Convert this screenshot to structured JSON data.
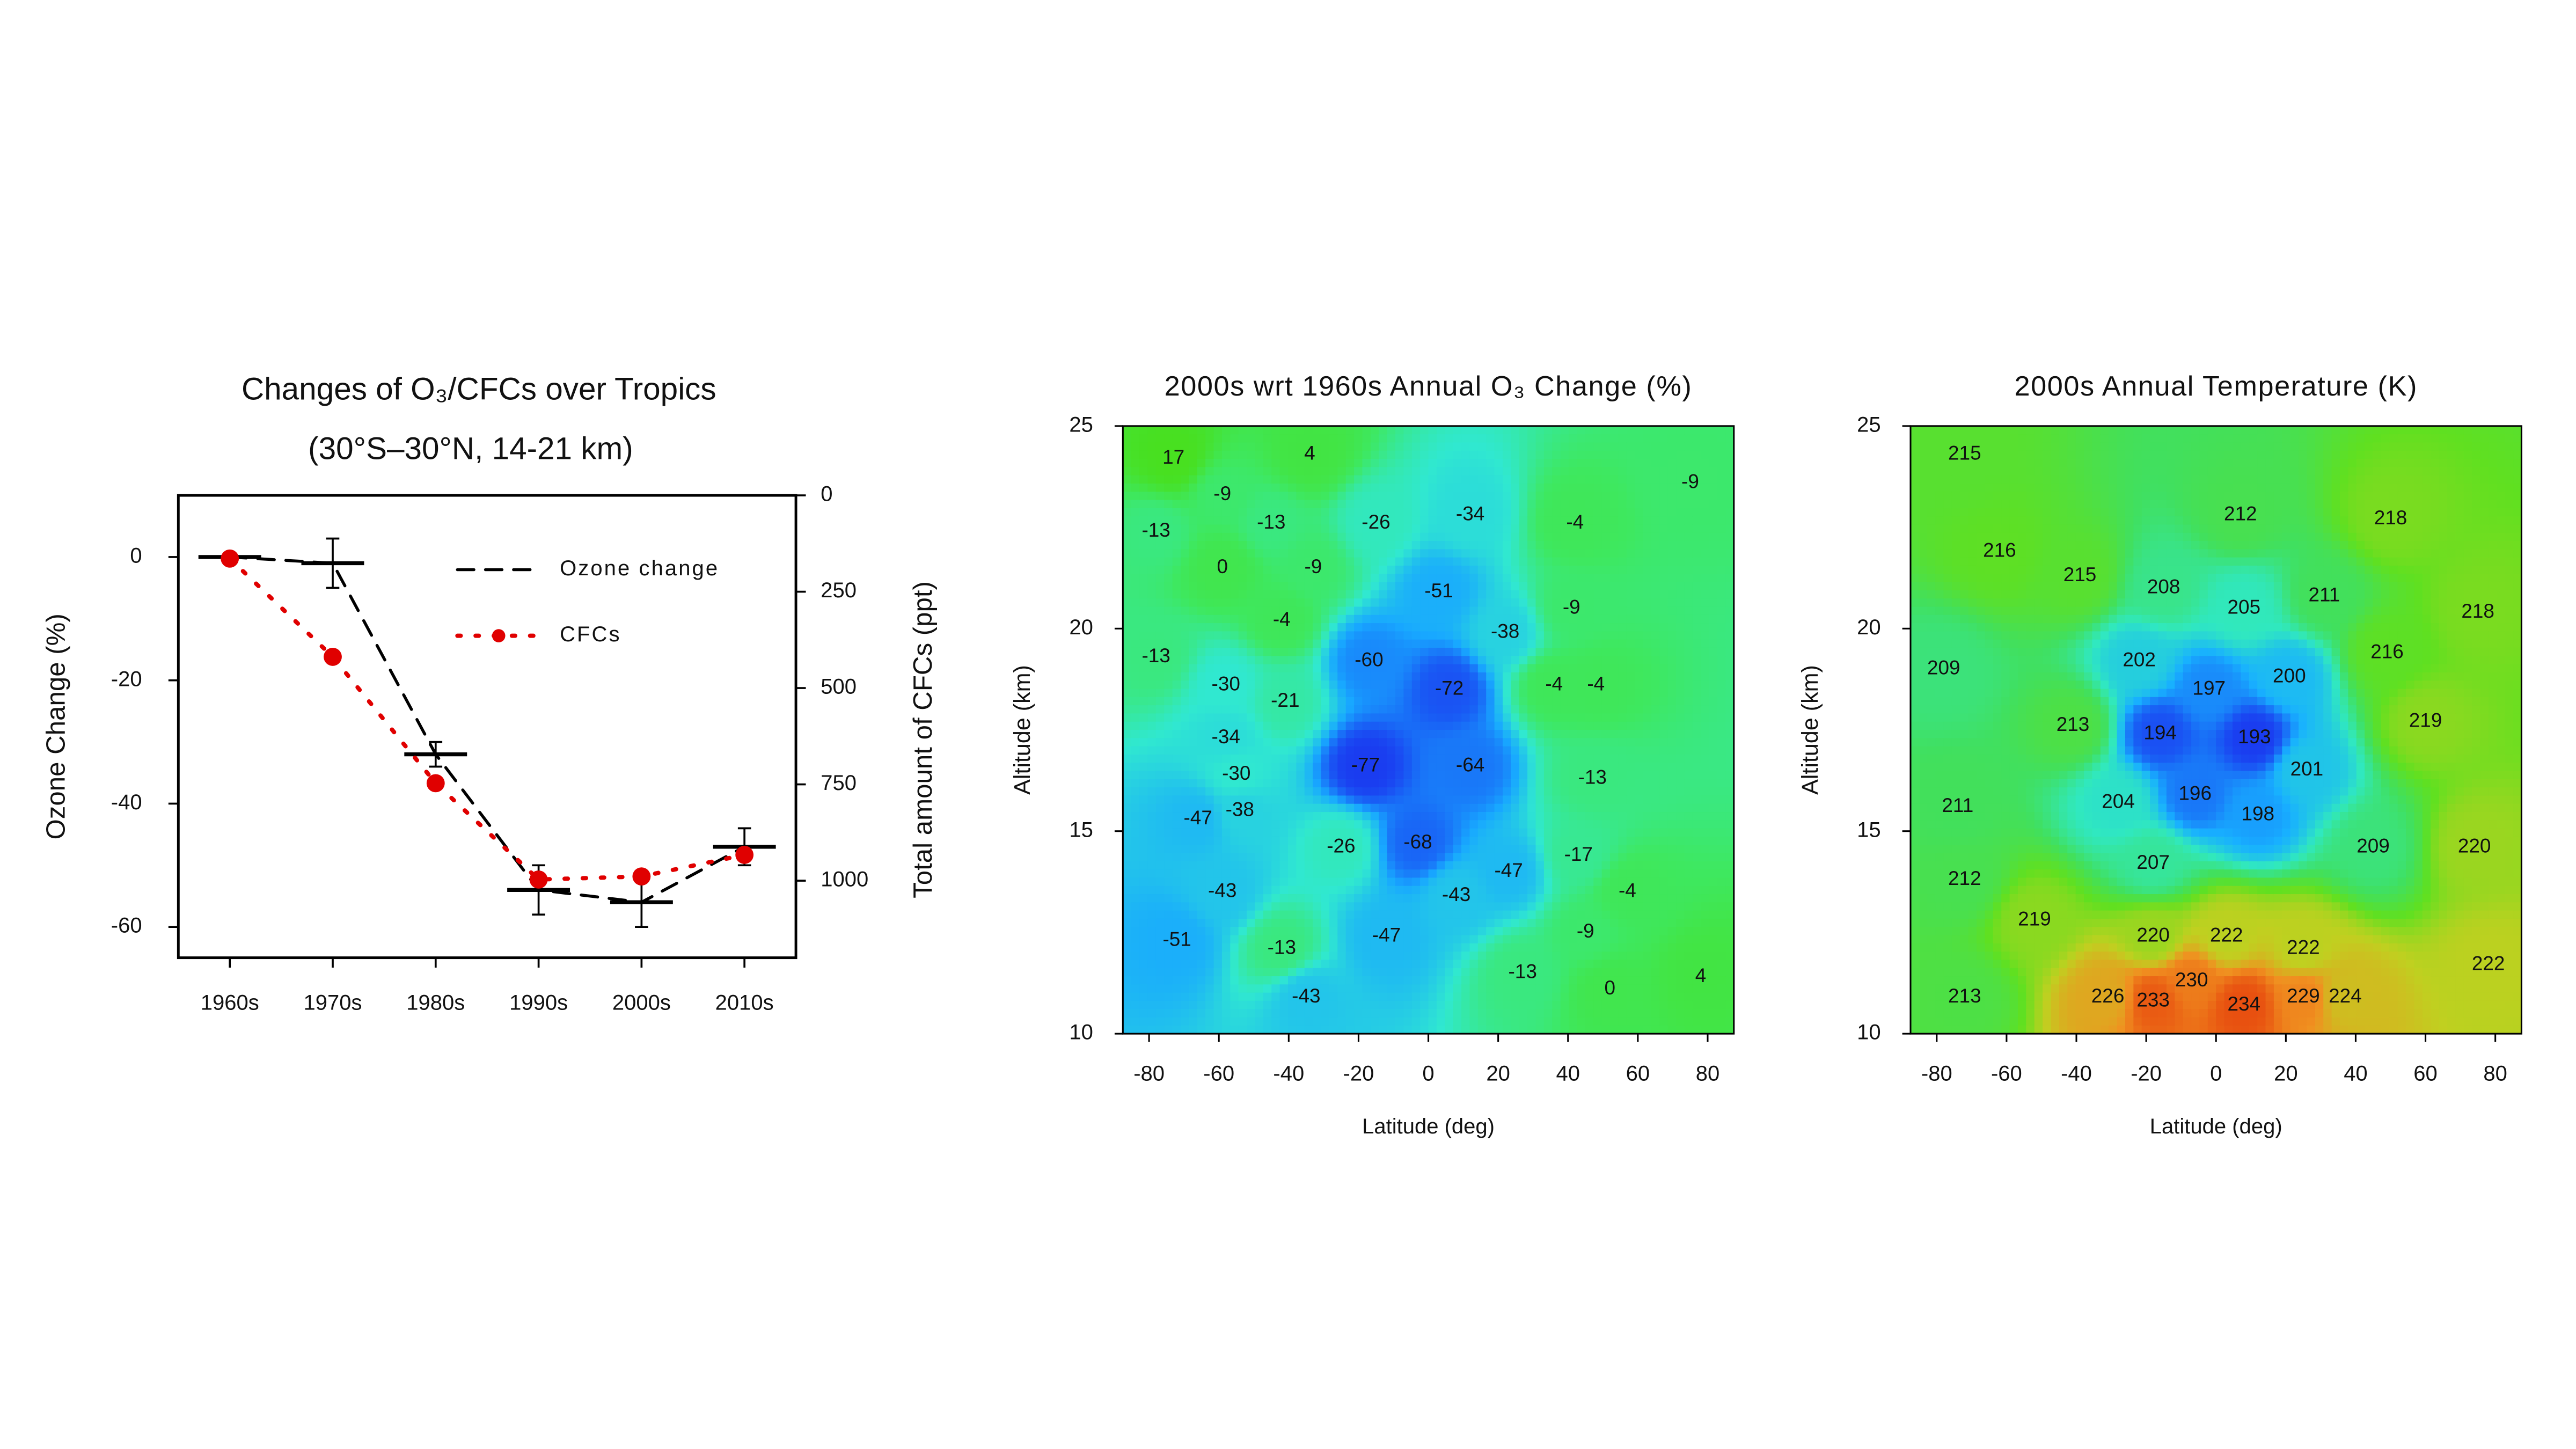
{
  "chart_data": [
    {
      "type": "line",
      "title": "Changes of O₃/CFCs over Tropics",
      "subtitle": "(30°S–30°N, 14-21 km)",
      "y_label": "Ozone Change (%)",
      "y2_label": "Total amount of CFCs (ppt)",
      "categories": [
        "1960s",
        "1970s",
        "1980s",
        "1990s",
        "2000s",
        "2010s"
      ],
      "ylim": [
        -65,
        10
      ],
      "yticks": [
        -60,
        -40,
        -20,
        0
      ],
      "y2lim": [
        1200,
        0
      ],
      "y2ticks": [
        0,
        250,
        500,
        750,
        1000
      ],
      "legend": "upper right",
      "series": [
        {
          "name": "Ozone change",
          "color": "#000000",
          "values": [
            0,
            -1,
            -32,
            -54,
            -56,
            -47
          ],
          "errors": [
            0,
            4,
            2,
            4,
            4,
            3
          ]
        },
        {
          "name": "CFCs",
          "color": "#e00000",
          "axis": "y2",
          "values": [
            164,
            419,
            747,
            997,
            989,
            933
          ]
        }
      ]
    },
    {
      "type": "contour",
      "title": "2000s wrt 1960s Annual O₃ Change (%)",
      "x_label": "Latitude (deg)",
      "y_label": "Altitude (km)",
      "xlim": [
        -87.5,
        87.5
      ],
      "ylim": [
        10,
        25
      ],
      "xticks": [
        -80,
        -60,
        -40,
        -20,
        0,
        20,
        40,
        60,
        80
      ],
      "yticks": [
        10,
        15,
        20,
        25
      ],
      "colormap": [
        "#1a3cf0",
        "#18a8ff",
        "#30e8d0",
        "#3ee860",
        "#48e020"
      ],
      "labels": [
        {
          "value": 17,
          "x": -73,
          "y": 24.2
        },
        {
          "value": 4,
          "x": -34,
          "y": 24.3
        },
        {
          "value": -9,
          "x": -59,
          "y": 23.3
        },
        {
          "value": -13,
          "x": -78,
          "y": 22.4
        },
        {
          "value": -13,
          "x": -45,
          "y": 22.6
        },
        {
          "value": 0,
          "x": -59,
          "y": 21.5
        },
        {
          "value": -9,
          "x": -33,
          "y": 21.5
        },
        {
          "value": -26,
          "x": -15,
          "y": 22.6
        },
        {
          "value": -34,
          "x": 12,
          "y": 22.8
        },
        {
          "value": -4,
          "x": 42,
          "y": 22.6
        },
        {
          "value": -9,
          "x": 75,
          "y": 23.6
        },
        {
          "value": -4,
          "x": -42,
          "y": 20.2
        },
        {
          "value": -51,
          "x": 3,
          "y": 20.9
        },
        {
          "value": -38,
          "x": 22,
          "y": 19.9
        },
        {
          "value": -9,
          "x": 41,
          "y": 20.5
        },
        {
          "value": -13,
          "x": -78,
          "y": 19.3
        },
        {
          "value": -60,
          "x": -17,
          "y": 19.2
        },
        {
          "value": -72,
          "x": 6,
          "y": 18.5
        },
        {
          "value": -4,
          "x": 36,
          "y": 18.6
        },
        {
          "value": -4,
          "x": 48,
          "y": 18.6
        },
        {
          "value": -30,
          "x": -58,
          "y": 18.6
        },
        {
          "value": -21,
          "x": -41,
          "y": 18.2
        },
        {
          "value": -34,
          "x": -58,
          "y": 17.3
        },
        {
          "value": -77,
          "x": -18,
          "y": 16.6
        },
        {
          "value": -64,
          "x": 12,
          "y": 16.6
        },
        {
          "value": -30,
          "x": -55,
          "y": 16.4
        },
        {
          "value": -13,
          "x": 47,
          "y": 16.3
        },
        {
          "value": -47,
          "x": -66,
          "y": 15.3
        },
        {
          "value": -38,
          "x": -54,
          "y": 15.5
        },
        {
          "value": -26,
          "x": -25,
          "y": 14.6
        },
        {
          "value": -68,
          "x": -3,
          "y": 14.7
        },
        {
          "value": -47,
          "x": 23,
          "y": 14.0
        },
        {
          "value": -17,
          "x": 43,
          "y": 14.4
        },
        {
          "value": -43,
          "x": -59,
          "y": 13.5
        },
        {
          "value": -43,
          "x": 8,
          "y": 13.4
        },
        {
          "value": -4,
          "x": 57,
          "y": 13.5
        },
        {
          "value": -51,
          "x": -72,
          "y": 12.3
        },
        {
          "value": -47,
          "x": -12,
          "y": 12.4
        },
        {
          "value": -9,
          "x": 45,
          "y": 12.5
        },
        {
          "value": -13,
          "x": -42,
          "y": 12.1
        },
        {
          "value": -13,
          "x": 27,
          "y": 11.5
        },
        {
          "value": -43,
          "x": -35,
          "y": 10.9
        },
        {
          "value": 0,
          "x": 52,
          "y": 11.1
        },
        {
          "value": 4,
          "x": 78,
          "y": 11.4
        }
      ]
    },
    {
      "type": "contour",
      "title": "2000s Annual Temperature (K)",
      "x_label": "Latitude (deg)",
      "y_label": "Altitude (km)",
      "xlim": [
        -87.5,
        87.5
      ],
      "ylim": [
        10,
        25
      ],
      "xticks": [
        -80,
        -60,
        -40,
        -20,
        0,
        20,
        40,
        60,
        80
      ],
      "yticks": [
        10,
        15,
        20,
        25
      ],
      "colormap": [
        "#1a3cf0",
        "#18b0ff",
        "#30e8c0",
        "#40e060",
        "#60e020",
        "#c0d020",
        "#f09020",
        "#e85010"
      ],
      "labels": [
        {
          "value": 215,
          "x": -72,
          "y": 24.3
        },
        {
          "value": 212,
          "x": 7,
          "y": 22.8
        },
        {
          "value": 218,
          "x": 50,
          "y": 22.7
        },
        {
          "value": 216,
          "x": -62,
          "y": 21.9
        },
        {
          "value": 215,
          "x": -39,
          "y": 21.3
        },
        {
          "value": 208,
          "x": -15,
          "y": 21.0
        },
        {
          "value": 205,
          "x": 8,
          "y": 20.5
        },
        {
          "value": 211,
          "x": 31,
          "y": 20.8
        },
        {
          "value": 218,
          "x": 75,
          "y": 20.4
        },
        {
          "value": 209,
          "x": -78,
          "y": 19.0
        },
        {
          "value": 202,
          "x": -22,
          "y": 19.2
        },
        {
          "value": 197,
          "x": -2,
          "y": 18.5
        },
        {
          "value": 200,
          "x": 21,
          "y": 18.8
        },
        {
          "value": 216,
          "x": 49,
          "y": 19.4
        },
        {
          "value": 213,
          "x": -41,
          "y": 17.6
        },
        {
          "value": 194,
          "x": -16,
          "y": 17.4
        },
        {
          "value": 193,
          "x": 11,
          "y": 17.3
        },
        {
          "value": 219,
          "x": 60,
          "y": 17.7
        },
        {
          "value": 201,
          "x": 26,
          "y": 16.5
        },
        {
          "value": 211,
          "x": -74,
          "y": 15.6
        },
        {
          "value": 204,
          "x": -28,
          "y": 15.7
        },
        {
          "value": 196,
          "x": -6,
          "y": 15.9
        },
        {
          "value": 198,
          "x": 12,
          "y": 15.4
        },
        {
          "value": 209,
          "x": 45,
          "y": 14.6
        },
        {
          "value": 220,
          "x": 74,
          "y": 14.6
        },
        {
          "value": 207,
          "x": -18,
          "y": 14.2
        },
        {
          "value": 212,
          "x": -72,
          "y": 13.8
        },
        {
          "value": 219,
          "x": -52,
          "y": 12.8
        },
        {
          "value": 220,
          "x": -18,
          "y": 12.4
        },
        {
          "value": 222,
          "x": 3,
          "y": 12.4
        },
        {
          "value": 222,
          "x": 25,
          "y": 12.1
        },
        {
          "value": 222,
          "x": 78,
          "y": 11.7
        },
        {
          "value": 213,
          "x": -72,
          "y": 10.9
        },
        {
          "value": 226,
          "x": -31,
          "y": 10.9
        },
        {
          "value": 233,
          "x": -18,
          "y": 10.8
        },
        {
          "value": 230,
          "x": -7,
          "y": 11.3
        },
        {
          "value": 234,
          "x": 8,
          "y": 10.7
        },
        {
          "value": 229,
          "x": 25,
          "y": 10.9
        },
        {
          "value": 224,
          "x": 37,
          "y": 10.9
        }
      ]
    }
  ]
}
